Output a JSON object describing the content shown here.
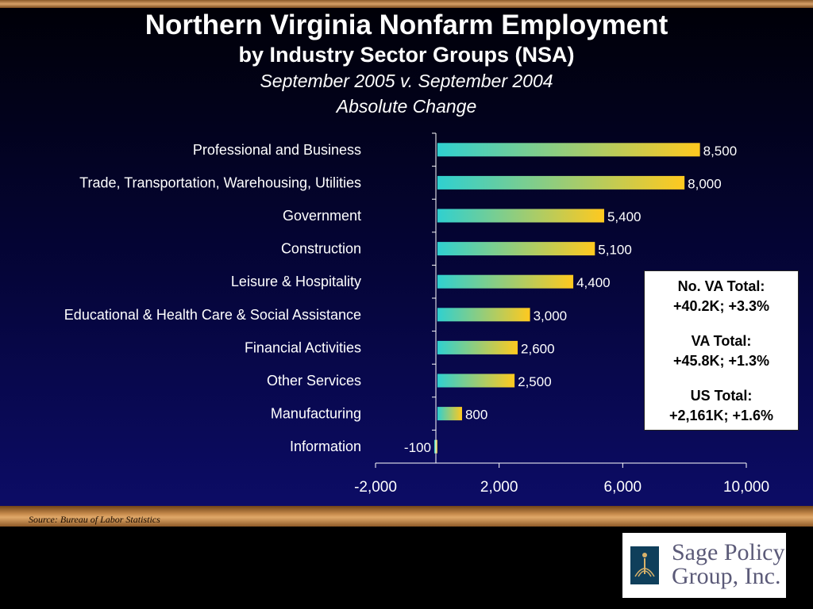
{
  "slide": {
    "title": "Northern Virginia Nonfarm Employment",
    "subtitle": "by Industry Sector Groups (NSA)",
    "period": "September 2005 v. September 2004",
    "measure": "Absolute Change"
  },
  "chart_data": {
    "type": "bar",
    "orientation": "horizontal",
    "categories": [
      "Professional and Business",
      "Trade, Transportation, Warehousing, Utilities",
      "Government",
      "Construction",
      "Leisure & Hospitality",
      "Educational & Health Care & Social Assistance",
      "Financial Activities",
      "Other Services",
      "Manufacturing",
      "Information"
    ],
    "values": [
      8500,
      8000,
      5400,
      5100,
      4400,
      3000,
      2600,
      2500,
      800,
      -100
    ],
    "value_labels": [
      "8,500",
      "8,000",
      "5,400",
      "5,100",
      "4,400",
      "3,000",
      "2,600",
      "2,500",
      "800",
      "-100"
    ],
    "xlim": [
      -2000,
      10000
    ],
    "x_ticks": [
      -2000,
      2000,
      6000,
      10000
    ],
    "x_tick_labels": [
      "-2,000",
      "2,000",
      "6,000",
      "10,000"
    ],
    "grid": false,
    "bar_gradient": [
      "#2fd0d0",
      "#ffc91f"
    ]
  },
  "callout": {
    "line1a": "No. VA Total:",
    "line1b": "+40.2K; +3.3%",
    "line2a": "VA Total:",
    "line2b": "+45.8K; +1.3%",
    "line3a": "US Total:",
    "line3b": "+2,161K; +1.6%"
  },
  "source": "Source:  Bureau of Labor Statistics",
  "logo": {
    "text_line1": "Sage Policy",
    "text_line2": "Group, Inc."
  }
}
